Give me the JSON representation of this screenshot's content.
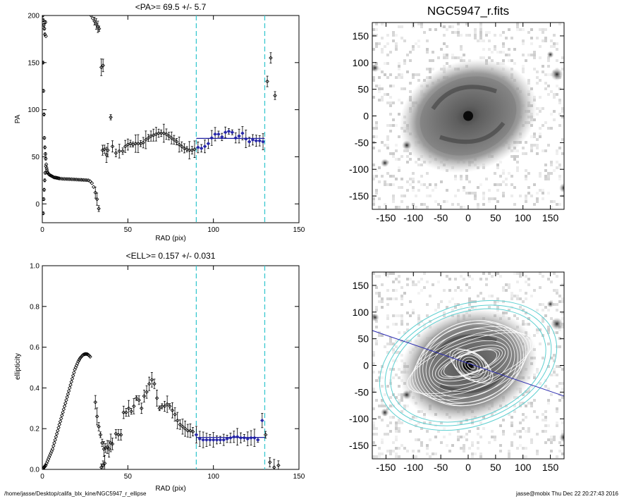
{
  "footer": {
    "path": "/home/jasse/Desktop/califa_blx_kine/NGC5947_r_ellipse",
    "user_stamp": "jasse@mobix  Thu Dec 22 20:27:43 2016"
  },
  "colors": {
    "fit_line": "#1e1ea0",
    "fit_points": "#2828a8",
    "marker_dashed": "#39c8cf",
    "contours": "#5ccfd0",
    "ellipses": "#ffffff",
    "pa_line": "#2a2ab0"
  },
  "chart_data": [
    {
      "type": "scatter",
      "title": "<PA>=  69.5 +/-   5.7",
      "xlabel": "RAD (pix)",
      "ylabel": "PA",
      "xlim": [
        0,
        150
      ],
      "ylim": [
        -20,
        200
      ],
      "xticks": [
        0,
        50,
        100,
        150
      ],
      "yticks": [
        0,
        50,
        100,
        150,
        200
      ],
      "vlines": [
        90,
        130
      ],
      "fit": {
        "x": [
          90,
          130
        ],
        "y": 69.5
      },
      "points": [
        [
          0.3,
          200
        ],
        [
          0.6,
          195
        ],
        [
          0.9,
          190
        ],
        [
          1.2,
          186
        ],
        [
          1.5,
          180
        ],
        [
          1.8,
          193
        ],
        [
          2.1,
          178
        ],
        [
          0.4,
          150
        ],
        [
          0.7,
          120
        ],
        [
          1.0,
          95
        ],
        [
          1.2,
          70
        ],
        [
          1.5,
          60
        ],
        [
          1.8,
          53
        ],
        [
          2.0,
          48
        ],
        [
          0.5,
          -10
        ],
        [
          0.8,
          5
        ],
        [
          1.1,
          15
        ],
        [
          1.4,
          25
        ],
        [
          1.7,
          33
        ],
        [
          2.1,
          40
        ],
        [
          2.3,
          42
        ],
        [
          2.5,
          38
        ],
        [
          2.7,
          36
        ],
        [
          2.9,
          34
        ],
        [
          3.2,
          33
        ],
        [
          3.5,
          32
        ],
        [
          3.8,
          31.5
        ],
        [
          4.1,
          31
        ],
        [
          4.5,
          30.5
        ],
        [
          5.0,
          30
        ],
        [
          5.5,
          29.5
        ],
        [
          6.0,
          29
        ],
        [
          6.5,
          28.5
        ],
        [
          7.0,
          28
        ],
        [
          7.5,
          28
        ],
        [
          8.0,
          27.8
        ],
        [
          8.5,
          27.6
        ],
        [
          9.0,
          27.4
        ],
        [
          9.5,
          27.2
        ],
        [
          10.0,
          27
        ],
        [
          11.0,
          26.8
        ],
        [
          12.0,
          26.6
        ],
        [
          13.0,
          26.5
        ],
        [
          14.0,
          26.4
        ],
        [
          15.0,
          26.3
        ],
        [
          16.0,
          26.2
        ],
        [
          17.0,
          26.1
        ],
        [
          18.0,
          26.0
        ],
        [
          19.0,
          25.9
        ],
        [
          20.0,
          25.8
        ],
        [
          21.0,
          25.7
        ],
        [
          22.0,
          25.6
        ],
        [
          23.0,
          25.5
        ],
        [
          24.0,
          25.4
        ],
        [
          25.0,
          25.3
        ],
        [
          26.0,
          25.2
        ],
        [
          27.0,
          25
        ],
        [
          28.0,
          24
        ],
        [
          29.0,
          22
        ],
        [
          30.0,
          18
        ],
        [
          31.0,
          12
        ],
        [
          32.0,
          5
        ],
        [
          33.0,
          -5
        ],
        [
          28.5,
          200
        ],
        [
          29.5,
          197
        ],
        [
          30.5,
          194
        ],
        [
          31.5,
          191
        ],
        [
          32.5,
          188
        ],
        [
          33.2,
          186
        ],
        [
          34.5,
          145
        ],
        [
          35.5,
          147
        ],
        [
          35.2,
          57
        ],
        [
          36.3,
          58
        ],
        [
          37.5,
          52
        ],
        [
          38.3,
          57
        ],
        [
          40.0,
          92
        ],
        [
          41.0,
          61
        ],
        [
          43.0,
          54
        ],
        [
          45.0,
          56
        ],
        [
          47.0,
          56
        ],
        [
          48.5,
          61
        ],
        [
          50.0,
          63
        ],
        [
          51.5,
          64
        ],
        [
          53.0,
          63
        ],
        [
          54.5,
          64
        ],
        [
          56.0,
          64
        ],
        [
          57.5,
          64
        ],
        [
          59.0,
          65
        ],
        [
          60.5,
          68
        ],
        [
          62.0,
          70
        ],
        [
          63.5,
          72
        ],
        [
          65.0,
          73
        ],
        [
          66.5,
          74
        ],
        [
          68.0,
          75
        ],
        [
          69.5,
          75
        ],
        [
          71.0,
          75
        ],
        [
          72.5,
          74
        ],
        [
          74.0,
          72
        ],
        [
          75.5,
          70
        ],
        [
          77.0,
          68
        ],
        [
          78.5,
          66
        ],
        [
          80.0,
          63
        ],
        [
          81.5,
          61
        ],
        [
          83.0,
          59
        ],
        [
          84.5,
          58
        ],
        [
          86.0,
          57
        ],
        [
          87.5,
          57
        ],
        [
          89.0,
          58
        ],
        [
          91.0,
          60
        ],
        [
          93.0,
          59
        ],
        [
          95.0,
          61
        ],
        [
          97.0,
          64
        ],
        [
          99.0,
          70
        ],
        [
          101.0,
          74
        ],
        [
          103.0,
          74
        ],
        [
          105.0,
          71
        ],
        [
          107.0,
          76
        ],
        [
          109.0,
          77
        ],
        [
          111.0,
          76
        ],
        [
          113.0,
          70
        ],
        [
          115.0,
          72
        ],
        [
          117.0,
          75
        ],
        [
          119.0,
          69
        ],
        [
          121.0,
          66
        ],
        [
          123.0,
          68
        ],
        [
          125.0,
          67
        ],
        [
          127.0,
          67
        ],
        [
          129.0,
          66
        ],
        [
          131.5,
          130
        ],
        [
          133.5,
          155
        ],
        [
          136.0,
          115
        ]
      ]
    },
    {
      "type": "scatter",
      "title": "<ELL>= 0.157 +/-  0.031",
      "xlabel": "RAD (pix)",
      "ylabel": "ellipticity",
      "xlim": [
        0,
        150
      ],
      "ylim": [
        0,
        1.0
      ],
      "xticks": [
        0,
        50,
        100,
        150
      ],
      "yticks": [
        0.0,
        0.2,
        0.4,
        0.6,
        0.8,
        1.0
      ],
      "vlines": [
        90,
        130
      ],
      "fit": {
        "x": [
          90,
          130
        ],
        "y": 0.157
      },
      "points": [
        [
          0.5,
          0.005
        ],
        [
          1.0,
          0.01
        ],
        [
          1.5,
          0.015
        ],
        [
          2.0,
          0.02
        ],
        [
          2.5,
          0.03
        ],
        [
          3.0,
          0.04
        ],
        [
          3.5,
          0.05
        ],
        [
          4.0,
          0.06
        ],
        [
          4.5,
          0.07
        ],
        [
          5.0,
          0.08
        ],
        [
          5.5,
          0.09
        ],
        [
          6.0,
          0.1
        ],
        [
          6.5,
          0.115
        ],
        [
          7.0,
          0.13
        ],
        [
          7.5,
          0.145
        ],
        [
          8.0,
          0.16
        ],
        [
          8.5,
          0.175
        ],
        [
          9.0,
          0.19
        ],
        [
          9.5,
          0.205
        ],
        [
          10.0,
          0.22
        ],
        [
          10.5,
          0.235
        ],
        [
          11.0,
          0.25
        ],
        [
          11.5,
          0.265
        ],
        [
          12.0,
          0.28
        ],
        [
          12.5,
          0.295
        ],
        [
          13.0,
          0.31
        ],
        [
          13.5,
          0.325
        ],
        [
          14.0,
          0.34
        ],
        [
          14.5,
          0.355
        ],
        [
          15.0,
          0.37
        ],
        [
          15.5,
          0.385
        ],
        [
          16.0,
          0.4
        ],
        [
          16.5,
          0.415
        ],
        [
          17.0,
          0.43
        ],
        [
          17.5,
          0.445
        ],
        [
          18.0,
          0.46
        ],
        [
          18.5,
          0.475
        ],
        [
          19.0,
          0.49
        ],
        [
          19.5,
          0.5
        ],
        [
          20.0,
          0.51
        ],
        [
          20.5,
          0.52
        ],
        [
          21.0,
          0.53
        ],
        [
          21.5,
          0.537
        ],
        [
          22.0,
          0.545
        ],
        [
          22.5,
          0.55
        ],
        [
          23.0,
          0.555
        ],
        [
          23.5,
          0.56
        ],
        [
          24.0,
          0.563
        ],
        [
          24.5,
          0.565
        ],
        [
          25.0,
          0.566
        ],
        [
          25.5,
          0.567
        ],
        [
          26.0,
          0.566
        ],
        [
          26.5,
          0.565
        ],
        [
          27.0,
          0.562
        ],
        [
          27.5,
          0.558
        ],
        [
          28.0,
          0.553
        ],
        [
          31.0,
          0.33
        ],
        [
          32.0,
          0.26
        ],
        [
          33.0,
          0.21
        ],
        [
          34.0,
          0.17
        ],
        [
          35.0,
          0.13
        ],
        [
          36.0,
          0.1
        ],
        [
          34.5,
          0.01
        ],
        [
          35.5,
          0.02
        ],
        [
          36.5,
          0.03
        ],
        [
          37.0,
          0.105
        ],
        [
          38.0,
          0.11
        ],
        [
          39.0,
          0.1
        ],
        [
          40.0,
          0.13
        ],
        [
          41.0,
          0.125
        ],
        [
          43.0,
          0.175
        ],
        [
          44.5,
          0.17
        ],
        [
          46.0,
          0.17
        ],
        [
          47.5,
          0.28
        ],
        [
          49.0,
          0.28
        ],
        [
          50.5,
          0.3
        ],
        [
          52.0,
          0.285
        ],
        [
          53.5,
          0.31
        ],
        [
          55.0,
          0.35
        ],
        [
          56.5,
          0.34
        ],
        [
          58.0,
          0.3
        ],
        [
          59.5,
          0.36
        ],
        [
          61.0,
          0.38
        ],
        [
          62.5,
          0.42
        ],
        [
          64.0,
          0.44
        ],
        [
          65.5,
          0.42
        ],
        [
          67.0,
          0.35
        ],
        [
          68.5,
          0.3
        ],
        [
          70.0,
          0.31
        ],
        [
          71.5,
          0.31
        ],
        [
          73.0,
          0.32
        ],
        [
          74.5,
          0.31
        ],
        [
          76.0,
          0.29
        ],
        [
          77.5,
          0.27
        ],
        [
          79.0,
          0.24
        ],
        [
          80.5,
          0.22
        ],
        [
          82.0,
          0.21
        ],
        [
          83.5,
          0.2
        ],
        [
          85.0,
          0.19
        ],
        [
          86.5,
          0.19
        ],
        [
          88.0,
          0.185
        ],
        [
          90.0,
          0.17
        ],
        [
          92.0,
          0.15
        ],
        [
          94.0,
          0.145
        ],
        [
          96.0,
          0.145
        ],
        [
          98.0,
          0.145
        ],
        [
          100.0,
          0.145
        ],
        [
          102.0,
          0.145
        ],
        [
          104.0,
          0.145
        ],
        [
          106.0,
          0.145
        ],
        [
          108.0,
          0.15
        ],
        [
          110.0,
          0.155
        ],
        [
          112.0,
          0.16
        ],
        [
          114.0,
          0.16
        ],
        [
          116.0,
          0.155
        ],
        [
          118.0,
          0.155
        ],
        [
          120.0,
          0.15
        ],
        [
          122.0,
          0.155
        ],
        [
          124.0,
          0.155
        ],
        [
          126.0,
          0.145
        ],
        [
          128.5,
          0.24
        ],
        [
          130.5,
          0.17
        ],
        [
          133.0,
          0.035
        ],
        [
          135.5,
          0.01
        ],
        [
          138.0,
          0.02
        ]
      ]
    },
    {
      "type": "heatmap",
      "title": "NGC5947_r.fits",
      "xlim": [
        -175,
        175
      ],
      "ylim": [
        -175,
        175
      ],
      "xticks": [
        -150,
        -100,
        -50,
        0,
        50,
        100,
        150
      ],
      "yticks": [
        -150,
        -100,
        -50,
        0,
        50,
        100,
        150
      ]
    },
    {
      "type": "heatmap",
      "title": "",
      "xlim": [
        -175,
        175
      ],
      "ylim": [
        -175,
        175
      ],
      "xticks": [
        -150,
        -100,
        -50,
        0,
        50,
        100,
        150
      ],
      "yticks": [
        -150,
        -100,
        -50,
        0,
        50,
        100,
        150
      ],
      "pa_line_deg": 69.5
    }
  ]
}
